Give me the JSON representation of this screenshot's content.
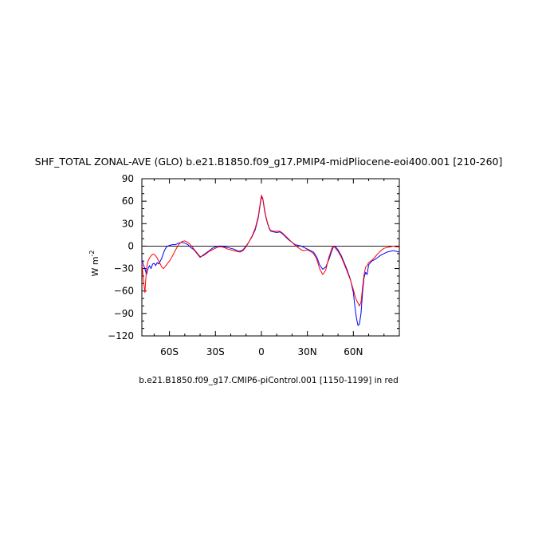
{
  "chart_data": {
    "type": "line",
    "title": "SHF_TOTAL ZONAL-AVE (GLO) b.e21.B1850.f09_g17.PMIP4-midPliocene-eoi400.001 [210-260]",
    "subtitle": "b.e21.B1850.f09_g17.CMIP6-piControl.001 [1150-1199] in red",
    "ylabel": "W m",
    "ylabel_exponent": "-2",
    "xlim": [
      -78,
      90
    ],
    "ylim": [
      -120,
      90
    ],
    "x_ticks": [
      {
        "value": -60,
        "label": "60S"
      },
      {
        "value": -30,
        "label": "30S"
      },
      {
        "value": 0,
        "label": "0"
      },
      {
        "value": 30,
        "label": "30N"
      },
      {
        "value": 60,
        "label": "60N"
      }
    ],
    "y_ticks": [
      {
        "value": 90,
        "label": "90"
      },
      {
        "value": 60,
        "label": "60"
      },
      {
        "value": 30,
        "label": "30"
      },
      {
        "value": 0,
        "label": "0"
      },
      {
        "value": -30,
        "label": "−30"
      },
      {
        "value": -60,
        "label": "−60"
      },
      {
        "value": -90,
        "label": "−90"
      },
      {
        "value": -120,
        "label": "−120"
      }
    ],
    "reference_line": 0,
    "series": [
      {
        "color": "#0000ff",
        "points": [
          [
            -78,
            -18
          ],
          [
            -77,
            -25
          ],
          [
            -76,
            -30
          ],
          [
            -75,
            -38
          ],
          [
            -74,
            -30
          ],
          [
            -73,
            -26
          ],
          [
            -72,
            -30
          ],
          [
            -71,
            -24
          ],
          [
            -70,
            -23
          ],
          [
            -69,
            -26
          ],
          [
            -68,
            -22
          ],
          [
            -67,
            -24
          ],
          [
            -66,
            -20
          ],
          [
            -65,
            -16
          ],
          [
            -64,
            -10
          ],
          [
            -63,
            -5
          ],
          [
            -62,
            -1
          ],
          [
            -60,
            1
          ],
          [
            -58,
            2
          ],
          [
            -56,
            2
          ],
          [
            -54,
            4
          ],
          [
            -52,
            5
          ],
          [
            -50,
            4
          ],
          [
            -48,
            2
          ],
          [
            -46,
            -2
          ],
          [
            -44,
            -5
          ],
          [
            -42,
            -10
          ],
          [
            -40,
            -15
          ],
          [
            -38,
            -12
          ],
          [
            -36,
            -9
          ],
          [
            -34,
            -6
          ],
          [
            -32,
            -3
          ],
          [
            -30,
            -1
          ],
          [
            -28,
            0
          ],
          [
            -26,
            0
          ],
          [
            -24,
            -1
          ],
          [
            -22,
            -2
          ],
          [
            -20,
            -3
          ],
          [
            -18,
            -4
          ],
          [
            -16,
            -6
          ],
          [
            -14,
            -7
          ],
          [
            -12,
            -5
          ],
          [
            -10,
            0
          ],
          [
            -8,
            6
          ],
          [
            -6,
            13
          ],
          [
            -4,
            22
          ],
          [
            -2,
            38
          ],
          [
            -1,
            52
          ],
          [
            0,
            66
          ],
          [
            1,
            62
          ],
          [
            2,
            48
          ],
          [
            3,
            38
          ],
          [
            4,
            30
          ],
          [
            5,
            24
          ],
          [
            6,
            20
          ],
          [
            8,
            19
          ],
          [
            10,
            18
          ],
          [
            12,
            19
          ],
          [
            14,
            16
          ],
          [
            16,
            12
          ],
          [
            18,
            8
          ],
          [
            20,
            5
          ],
          [
            22,
            2
          ],
          [
            24,
            1
          ],
          [
            26,
            0
          ],
          [
            28,
            -2
          ],
          [
            30,
            -4
          ],
          [
            32,
            -6
          ],
          [
            34,
            -8
          ],
          [
            36,
            -14
          ],
          [
            38,
            -25
          ],
          [
            40,
            -31
          ],
          [
            42,
            -28
          ],
          [
            44,
            -18
          ],
          [
            46,
            -6
          ],
          [
            47,
            -1
          ],
          [
            48,
            0
          ],
          [
            50,
            -5
          ],
          [
            52,
            -12
          ],
          [
            54,
            -22
          ],
          [
            56,
            -32
          ],
          [
            58,
            -44
          ],
          [
            60,
            -62
          ],
          [
            61,
            -80
          ],
          [
            62,
            -96
          ],
          [
            63,
            -106
          ],
          [
            64,
            -104
          ],
          [
            65,
            -90
          ],
          [
            66,
            -62
          ],
          [
            67,
            -42
          ],
          [
            68,
            -35
          ],
          [
            69,
            -38
          ],
          [
            70,
            -25
          ],
          [
            72,
            -20
          ],
          [
            74,
            -18
          ],
          [
            76,
            -15
          ],
          [
            78,
            -12
          ],
          [
            80,
            -10
          ],
          [
            82,
            -8
          ],
          [
            84,
            -7
          ],
          [
            86,
            -6
          ],
          [
            88,
            -7
          ],
          [
            90,
            -8
          ]
        ]
      },
      {
        "color": "#ff0000",
        "points": [
          [
            -78,
            -22
          ],
          [
            -77,
            -45
          ],
          [
            -76,
            -62
          ],
          [
            -75,
            -30
          ],
          [
            -74,
            -20
          ],
          [
            -73,
            -16
          ],
          [
            -72,
            -13
          ],
          [
            -71,
            -11
          ],
          [
            -70,
            -11
          ],
          [
            -69,
            -13
          ],
          [
            -68,
            -16
          ],
          [
            -67,
            -20
          ],
          [
            -66,
            -24
          ],
          [
            -65,
            -28
          ],
          [
            -64,
            -30
          ],
          [
            -63,
            -28
          ],
          [
            -62,
            -25
          ],
          [
            -60,
            -20
          ],
          [
            -58,
            -13
          ],
          [
            -56,
            -5
          ],
          [
            -54,
            2
          ],
          [
            -52,
            6
          ],
          [
            -50,
            7
          ],
          [
            -48,
            5
          ],
          [
            -46,
            1
          ],
          [
            -44,
            -4
          ],
          [
            -42,
            -9
          ],
          [
            -40,
            -14
          ],
          [
            -38,
            -13
          ],
          [
            -36,
            -10
          ],
          [
            -34,
            -7
          ],
          [
            -32,
            -5
          ],
          [
            -30,
            -3
          ],
          [
            -28,
            -1
          ],
          [
            -26,
            -1
          ],
          [
            -24,
            -2
          ],
          [
            -22,
            -4
          ],
          [
            -20,
            -5
          ],
          [
            -18,
            -6
          ],
          [
            -16,
            -7
          ],
          [
            -14,
            -8
          ],
          [
            -12,
            -6
          ],
          [
            -10,
            -1
          ],
          [
            -8,
            6
          ],
          [
            -6,
            14
          ],
          [
            -4,
            24
          ],
          [
            -2,
            40
          ],
          [
            -1,
            54
          ],
          [
            0,
            68
          ],
          [
            1,
            63
          ],
          [
            2,
            50
          ],
          [
            3,
            39
          ],
          [
            4,
            31
          ],
          [
            5,
            25
          ],
          [
            6,
            21
          ],
          [
            8,
            20
          ],
          [
            10,
            20
          ],
          [
            12,
            20
          ],
          [
            14,
            17
          ],
          [
            16,
            13
          ],
          [
            18,
            9
          ],
          [
            20,
            5
          ],
          [
            22,
            1
          ],
          [
            24,
            -2
          ],
          [
            26,
            -5
          ],
          [
            28,
            -6
          ],
          [
            30,
            -5
          ],
          [
            32,
            -7
          ],
          [
            34,
            -10
          ],
          [
            36,
            -17
          ],
          [
            38,
            -30
          ],
          [
            40,
            -38
          ],
          [
            42,
            -32
          ],
          [
            44,
            -15
          ],
          [
            46,
            -3
          ],
          [
            47,
            0
          ],
          [
            48,
            -2
          ],
          [
            50,
            -7
          ],
          [
            52,
            -14
          ],
          [
            54,
            -24
          ],
          [
            56,
            -34
          ],
          [
            58,
            -45
          ],
          [
            60,
            -58
          ],
          [
            61,
            -66
          ],
          [
            62,
            -72
          ],
          [
            63,
            -76
          ],
          [
            64,
            -80
          ],
          [
            65,
            -75
          ],
          [
            66,
            -55
          ],
          [
            67,
            -38
          ],
          [
            68,
            -28
          ],
          [
            69,
            -26
          ],
          [
            70,
            -22
          ],
          [
            72,
            -19
          ],
          [
            74,
            -15
          ],
          [
            76,
            -10
          ],
          [
            78,
            -6
          ],
          [
            80,
            -3
          ],
          [
            82,
            -2
          ],
          [
            84,
            -1
          ],
          [
            86,
            0
          ],
          [
            88,
            -1
          ],
          [
            90,
            -1
          ]
        ]
      }
    ]
  }
}
